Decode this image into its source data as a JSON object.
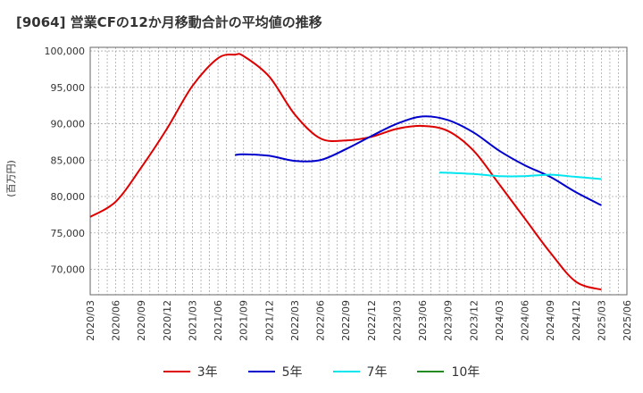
{
  "chart_data": {
    "type": "line",
    "title": "[9064]  営業CFの12か月移動合計の平均値の推移",
    "ylabel": "(百万円)",
    "xlabel": "",
    "ylim": [
      66500,
      100500
    ],
    "y_ticks": [
      "70,000",
      "75,000",
      "80,000",
      "85,000",
      "90,000",
      "95,000",
      "100,000"
    ],
    "x_tick_labels": [
      "2020/03",
      "2020/06",
      "2020/09",
      "2020/12",
      "2021/03",
      "2021/06",
      "2021/09",
      "2021/12",
      "2022/03",
      "2022/06",
      "2022/09",
      "2022/12",
      "2023/03",
      "2023/06",
      "2023/09",
      "2023/12",
      "2024/03",
      "2024/06",
      "2024/09",
      "2024/12",
      "2025/03",
      "2025/06"
    ],
    "grid": true,
    "legend_position": "bottom",
    "series": [
      {
        "name": "3年",
        "color": "#dd0000",
        "x": [
          "2020/03",
          "2020/06",
          "2020/09",
          "2020/12",
          "2021/03",
          "2021/06",
          "2021/08",
          "2021/09",
          "2021/12",
          "2022/03",
          "2022/06",
          "2022/09",
          "2022/12",
          "2023/03",
          "2023/06",
          "2023/09",
          "2023/12",
          "2024/03",
          "2024/06",
          "2024/09",
          "2024/12",
          "2025/03"
        ],
        "values": [
          77200,
          79300,
          84000,
          89300,
          95200,
          99000,
          99500,
          99300,
          96500,
          91300,
          88000,
          87700,
          88200,
          89300,
          89700,
          89000,
          86300,
          81700,
          77000,
          72300,
          68300,
          67200
        ]
      },
      {
        "name": "5年",
        "color": "#0000cc",
        "x": [
          "2021/08",
          "2021/09",
          "2021/12",
          "2022/03",
          "2022/06",
          "2022/09",
          "2022/12",
          "2023/03",
          "2023/06",
          "2023/09",
          "2023/12",
          "2024/03",
          "2024/06",
          "2024/09",
          "2024/12",
          "2025/03"
        ],
        "values": [
          85700,
          85800,
          85600,
          84900,
          85000,
          86500,
          88300,
          90000,
          91000,
          90500,
          88800,
          86300,
          84300,
          82700,
          80600,
          78800
        ]
      },
      {
        "name": "7年",
        "color": "#00e5ee",
        "x": [
          "2023/08",
          "2023/12",
          "2024/03",
          "2024/06",
          "2024/09",
          "2024/12",
          "2025/03"
        ],
        "values": [
          83300,
          83100,
          82800,
          82800,
          83000,
          82700,
          82400
        ]
      },
      {
        "name": "10年",
        "color": "#228b22",
        "x": [],
        "values": []
      }
    ]
  }
}
